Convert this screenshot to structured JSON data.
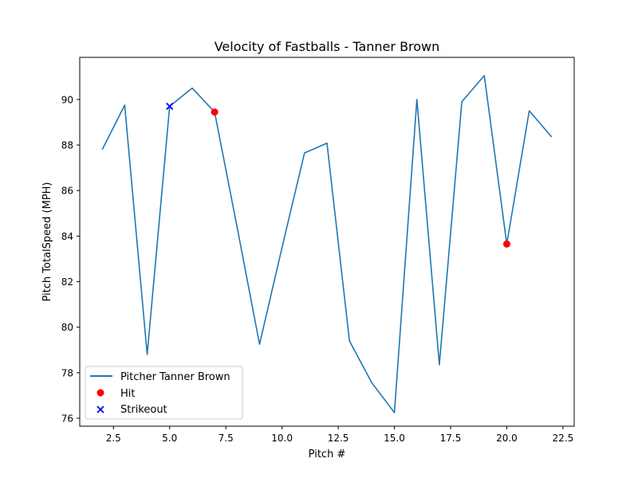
{
  "chart_data": {
    "type": "line",
    "title": "Velocity of Fastballs - Tanner Brown",
    "xlabel": "Pitch #",
    "ylabel": "Pitch TotalSpeed (MPH)",
    "xlim": [
      1.0,
      23.0
    ],
    "ylim": [
      75.65,
      91.85
    ],
    "xticks": [
      2.5,
      5.0,
      7.5,
      10.0,
      12.5,
      15.0,
      17.5,
      20.0,
      22.5
    ],
    "xtick_labels": [
      "2.5",
      "5.0",
      "7.5",
      "10.0",
      "12.5",
      "15.0",
      "17.5",
      "20.0",
      "22.5"
    ],
    "yticks": [
      76,
      78,
      80,
      82,
      84,
      86,
      88,
      90
    ],
    "ytick_labels": [
      "76",
      "78",
      "80",
      "82",
      "84",
      "86",
      "88",
      "90"
    ],
    "grid": false,
    "legend_position": "lower-left",
    "series": [
      {
        "name": "Pitcher Tanner Brown",
        "kind": "line",
        "color": "#1f77b4",
        "x": [
          2,
          3,
          4,
          5,
          6,
          7,
          8,
          9,
          10,
          11,
          12,
          13,
          14,
          15,
          16,
          17,
          18,
          19,
          20,
          21,
          22
        ],
        "y": [
          87.8,
          89.75,
          78.8,
          89.7,
          90.5,
          89.45,
          84.4,
          79.25,
          83.5,
          87.65,
          88.08,
          79.4,
          77.55,
          76.25,
          90.0,
          78.35,
          89.9,
          91.05,
          83.65,
          89.5,
          88.35
        ]
      },
      {
        "name": "Hit",
        "kind": "scatter",
        "marker": "circle",
        "color": "#ff0000",
        "x": [
          7,
          20
        ],
        "y": [
          89.45,
          83.65
        ]
      },
      {
        "name": "Strikeout",
        "kind": "scatter",
        "marker": "x",
        "color": "#0000ff",
        "x": [
          5
        ],
        "y": [
          89.7
        ]
      }
    ]
  }
}
